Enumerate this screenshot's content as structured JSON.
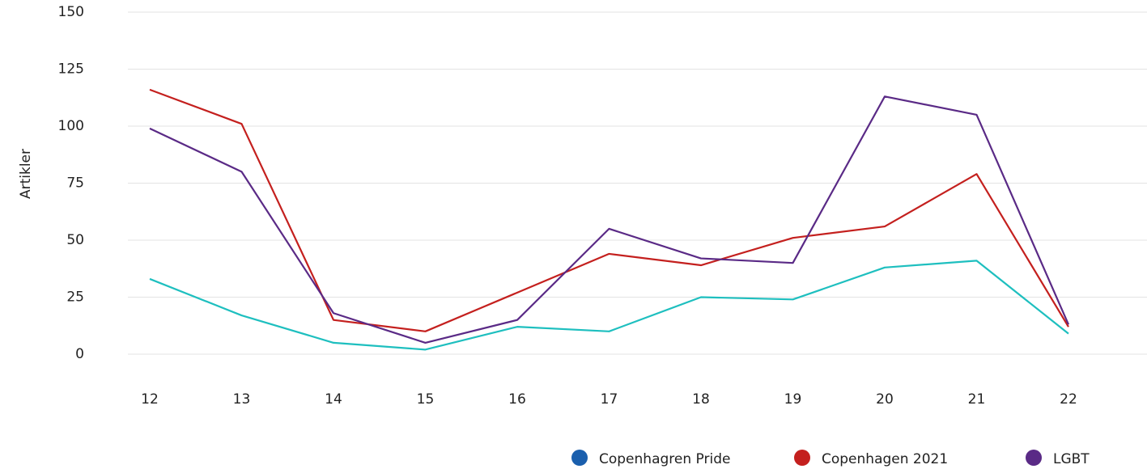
{
  "chart_data": {
    "type": "line",
    "y_label": "Artikler",
    "categories": [
      "12",
      "13",
      "14",
      "15",
      "16",
      "17",
      "18",
      "19",
      "20",
      "21",
      "22"
    ],
    "series": [
      {
        "name": "Copenhagren Pride",
        "color": "#1ebfbf",
        "legend_color": "#1a5fad",
        "values": [
          33,
          17,
          5,
          2,
          12,
          10,
          25,
          24,
          38,
          41,
          9
        ]
      },
      {
        "name": "Copenhagen 2021",
        "color": "#c4201e",
        "legend_color": "#c4201e",
        "values": [
          116,
          101,
          15,
          10,
          27,
          44,
          39,
          51,
          56,
          79,
          12
        ]
      },
      {
        "name": "LGBT",
        "color": "#5a2a86",
        "legend_color": "#5a2a86",
        "values": [
          99,
          80,
          18,
          5,
          15,
          55,
          42,
          40,
          113,
          105,
          13
        ]
      }
    ],
    "ylim": [
      0,
      150
    ],
    "yticks": [
      0,
      25,
      50,
      75,
      100,
      125,
      150
    ],
    "grid": true
  }
}
